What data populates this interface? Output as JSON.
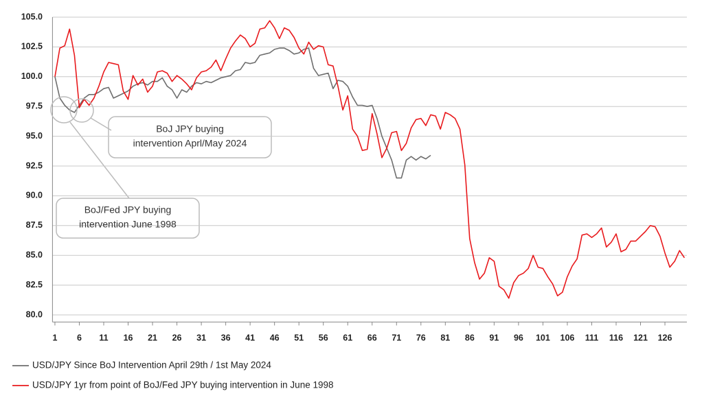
{
  "chart_data": {
    "type": "line",
    "x": [
      1,
      2,
      3,
      4,
      5,
      6,
      7,
      8,
      9,
      10,
      11,
      12,
      13,
      14,
      15,
      16,
      17,
      18,
      19,
      20,
      21,
      22,
      23,
      24,
      25,
      26,
      27,
      28,
      29,
      30,
      31,
      32,
      33,
      34,
      35,
      36,
      37,
      38,
      39,
      40,
      41,
      42,
      43,
      44,
      45,
      46,
      47,
      48,
      49,
      50,
      51,
      52,
      53,
      54,
      55,
      56,
      57,
      58,
      59,
      60,
      61,
      62,
      63,
      64,
      65,
      66,
      67,
      68,
      69,
      70,
      71,
      72,
      73,
      74,
      75,
      76,
      77,
      78,
      79,
      80,
      81,
      82,
      83,
      84,
      85,
      86,
      87,
      88,
      89,
      90,
      91,
      92,
      93,
      94,
      95,
      96,
      97,
      98,
      99,
      100,
      101,
      102,
      103,
      104,
      105,
      106,
      107,
      108,
      109,
      110,
      111,
      112,
      113,
      114,
      115,
      116,
      117,
      118,
      119,
      120,
      121,
      122,
      123,
      124,
      125,
      126,
      127,
      128,
      129,
      130
    ],
    "xlim": [
      0.5,
      130.5
    ],
    "xticks": [
      1,
      6,
      11,
      16,
      21,
      26,
      31,
      36,
      41,
      46,
      51,
      56,
      61,
      66,
      71,
      76,
      81,
      86,
      91,
      96,
      101,
      106,
      111,
      116,
      121,
      126
    ],
    "ylim": [
      79.4,
      105
    ],
    "yticks": [
      {
        "value": 80,
        "label": "80.0"
      },
      {
        "value": 82.5,
        "label": "82.5"
      },
      {
        "value": 85,
        "label": "85.0"
      },
      {
        "value": 87.5,
        "label": "87.5"
      },
      {
        "value": 90,
        "label": "90.0"
      },
      {
        "value": 92.5,
        "label": "92.5"
      },
      {
        "value": 95,
        "label": "95.0"
      },
      {
        "value": 97.5,
        "label": "97.5"
      },
      {
        "value": 100,
        "label": "100.0"
      },
      {
        "value": 102.5,
        "label": "102.5"
      },
      {
        "value": 105,
        "label": "105.0"
      }
    ],
    "grid": true,
    "series": [
      {
        "name": "USD/JPY Since BoJ Intervention April 29th / 1st May 2024",
        "color": "#6e6e6e",
        "values": [
          100.0,
          98.2,
          97.6,
          97.2,
          97.0,
          97.6,
          98.2,
          98.5,
          98.5,
          98.7,
          99.0,
          99.1,
          98.2,
          98.4,
          98.6,
          98.8,
          99.2,
          99.4,
          99.5,
          99.3,
          99.6,
          99.6,
          99.9,
          99.2,
          98.9,
          98.2,
          98.9,
          98.7,
          99.2,
          99.5,
          99.4,
          99.6,
          99.5,
          99.7,
          99.9,
          100.0,
          100.1,
          100.5,
          100.6,
          101.2,
          101.1,
          101.2,
          101.8,
          101.9,
          102.0,
          102.3,
          102.4,
          102.4,
          102.2,
          101.9,
          102.0,
          102.3,
          102.4,
          100.7,
          100.1,
          100.2,
          100.3,
          99.0,
          99.7,
          99.6,
          99.2,
          98.3,
          97.6,
          97.6,
          97.5,
          97.6,
          96.5,
          95.0,
          94.0,
          93.0,
          91.5,
          91.5,
          93.0,
          93.3,
          93.0,
          93.3,
          93.1,
          93.4,
          null,
          null,
          null,
          null,
          null,
          null,
          null,
          null,
          null,
          null,
          null,
          null,
          null,
          null,
          null,
          null,
          null,
          null,
          null,
          null,
          null,
          null,
          null,
          null,
          null,
          null,
          null,
          null,
          null,
          null,
          null,
          null,
          null,
          null,
          null,
          null,
          null,
          null,
          null,
          null,
          null,
          null,
          null,
          null,
          null,
          null,
          null,
          null,
          null,
          null,
          null,
          null
        ]
      },
      {
        "name": "USD/JPY 1yr from point of BoJ/Fed JPY buying intervention in June 1998",
        "color": "#e8191c",
        "values": [
          100.0,
          102.4,
          102.6,
          104.0,
          101.8,
          97.4,
          98.1,
          97.6,
          98.2,
          99.2,
          100.4,
          101.2,
          101.1,
          101.0,
          98.8,
          98.1,
          100.1,
          99.3,
          99.8,
          98.7,
          99.2,
          100.4,
          100.5,
          100.3,
          99.6,
          100.1,
          99.8,
          99.4,
          98.9,
          99.9,
          100.4,
          100.5,
          100.8,
          101.4,
          100.5,
          101.5,
          102.4,
          103.0,
          103.5,
          103.2,
          102.5,
          102.8,
          104.0,
          104.1,
          104.7,
          104.1,
          103.2,
          104.1,
          103.9,
          103.3,
          102.4,
          101.9,
          102.9,
          102.3,
          102.6,
          102.5,
          101.0,
          100.9,
          99.2,
          97.2,
          98.4,
          95.6,
          95.0,
          93.8,
          93.9,
          96.9,
          95.2,
          93.2,
          94.0,
          95.3,
          95.4,
          93.8,
          94.4,
          95.7,
          96.4,
          96.5,
          95.9,
          96.8,
          96.7,
          95.6,
          97.0,
          96.8,
          96.5,
          95.6,
          92.6,
          86.4,
          84.4,
          83.0,
          83.5,
          84.8,
          84.5,
          82.4,
          82.1,
          81.4,
          82.7,
          83.3,
          83.5,
          83.9,
          85.0,
          84.0,
          83.9,
          83.2,
          82.6,
          81.6,
          81.9,
          83.2,
          84.1,
          84.7,
          86.7,
          86.8,
          86.5,
          86.8,
          87.3,
          85.7,
          86.1,
          86.8,
          85.3,
          85.5,
          86.2,
          86.2,
          86.6,
          87.0,
          87.5,
          87.4,
          86.6,
          85.2,
          84.0,
          84.5,
          85.4,
          84.8
        ]
      }
    ],
    "annotations": [
      {
        "lines": [
          "BoJ JPY buying",
          "intervention Aprl/May 2024"
        ]
      },
      {
        "lines": [
          "BoJ/Fed JPY buying",
          "intervention June 1998"
        ]
      }
    ]
  }
}
